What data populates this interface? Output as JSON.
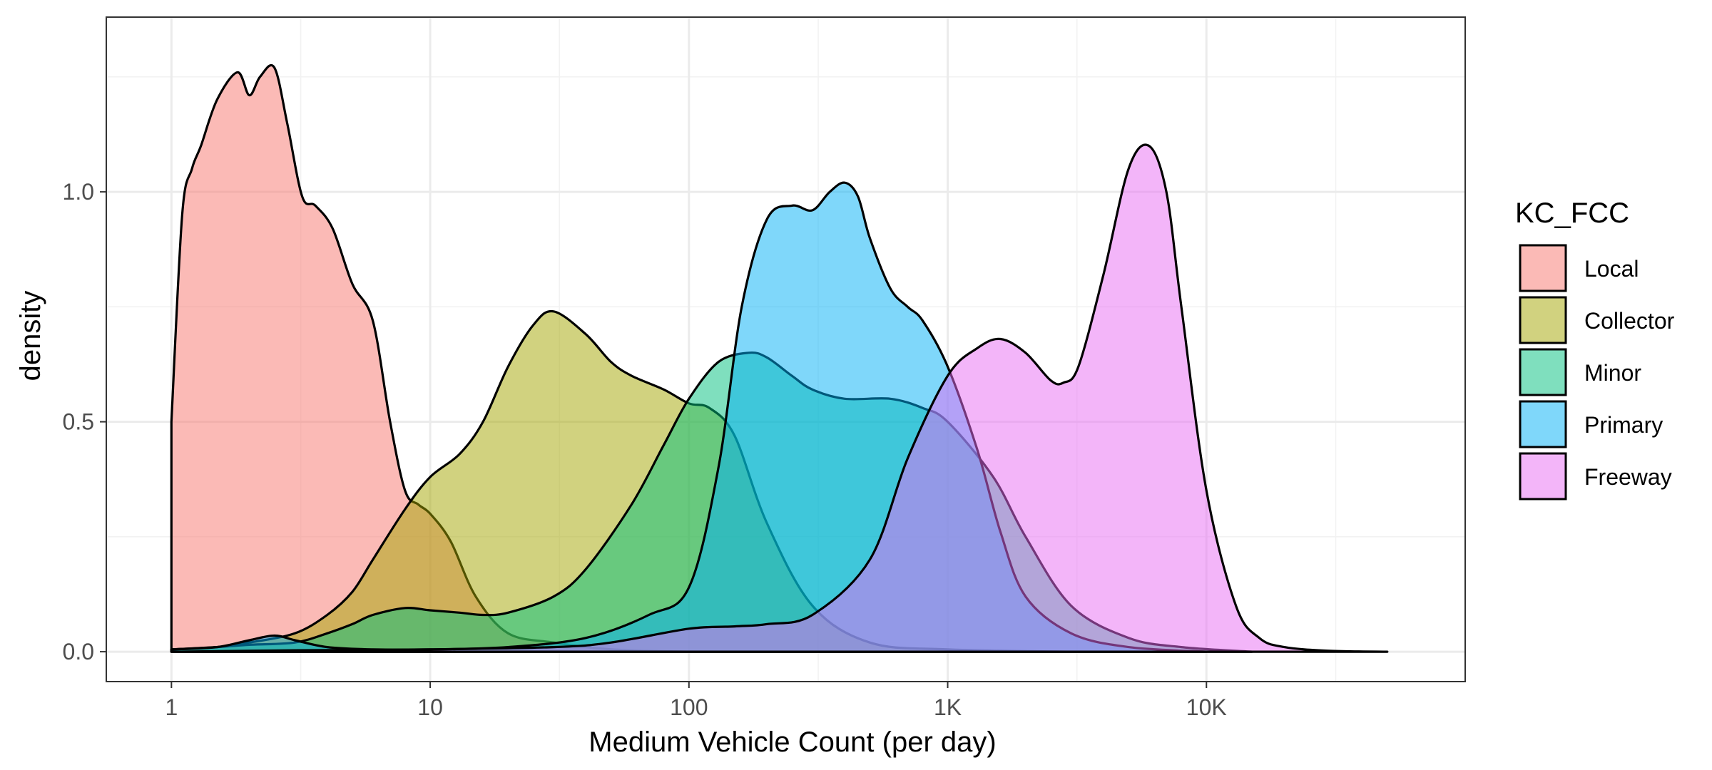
{
  "chart_data": {
    "type": "area",
    "xlabel": "Medium Vehicle Count (per day)",
    "ylabel": "density",
    "x_scale": "log10",
    "xlim": [
      0.56,
      100000
    ],
    "ylim": [
      -0.065,
      1.38
    ],
    "x_ticks": [
      {
        "value": 1,
        "label": "1"
      },
      {
        "value": 10,
        "label": "10"
      },
      {
        "value": 100,
        "label": "100"
      },
      {
        "value": 1000,
        "label": "1K"
      },
      {
        "value": 10000,
        "label": "10K"
      }
    ],
    "x_minor_ticks": [
      3.16,
      31.6,
      316,
      3160,
      31600
    ],
    "y_ticks": [
      {
        "value": 0.0,
        "label": "0.0"
      },
      {
        "value": 0.5,
        "label": "0.5"
      },
      {
        "value": 1.0,
        "label": "1.0"
      }
    ],
    "y_minor_ticks": [
      0.25,
      0.75,
      1.25
    ],
    "grid": true,
    "fill_opacity": 0.5,
    "legend": {
      "title": "KC_FCC",
      "position": "right",
      "entries": [
        "Local",
        "Collector",
        "Minor",
        "Primary",
        "Freeway"
      ]
    },
    "series": [
      {
        "name": "Local",
        "color": "#F8766D",
        "x": [
          1,
          1.1,
          1.2,
          1.3,
          1.5,
          1.8,
          2,
          2.2,
          2.5,
          2.8,
          3.2,
          3.6,
          4.2,
          5,
          6,
          7,
          8,
          9,
          10,
          12,
          15,
          20,
          30,
          50,
          100
        ],
        "y": [
          0.5,
          0.95,
          1.05,
          1.1,
          1.2,
          1.26,
          1.21,
          1.25,
          1.27,
          1.15,
          0.99,
          0.97,
          0.92,
          0.8,
          0.72,
          0.5,
          0.35,
          0.32,
          0.3,
          0.24,
          0.12,
          0.04,
          0.02,
          0.005,
          0.0
        ]
      },
      {
        "name": "Collector",
        "color": "#A3A500",
        "x": [
          1,
          1.5,
          2,
          3,
          4,
          5,
          6,
          8,
          10,
          13,
          16,
          20,
          25,
          30,
          40,
          50,
          60,
          80,
          100,
          120,
          150,
          200,
          300,
          500,
          1000,
          3000
        ],
        "y": [
          0.005,
          0.01,
          0.02,
          0.04,
          0.08,
          0.13,
          0.2,
          0.31,
          0.38,
          0.43,
          0.5,
          0.62,
          0.71,
          0.74,
          0.69,
          0.63,
          0.6,
          0.57,
          0.54,
          0.53,
          0.47,
          0.28,
          0.1,
          0.02,
          0.005,
          0.0
        ]
      },
      {
        "name": "Minor",
        "color": "#00BF7D",
        "x": [
          1,
          1.5,
          2,
          3,
          4,
          5,
          6,
          8,
          10,
          13,
          16,
          20,
          30,
          40,
          60,
          80,
          100,
          130,
          170,
          200,
          250,
          300,
          400,
          600,
          800,
          1000,
          1500,
          2000,
          3000,
          5000,
          8000,
          15000
        ],
        "y": [
          0.005,
          0.01,
          0.015,
          0.02,
          0.04,
          0.06,
          0.08,
          0.095,
          0.09,
          0.085,
          0.08,
          0.085,
          0.12,
          0.18,
          0.32,
          0.45,
          0.55,
          0.63,
          0.65,
          0.64,
          0.6,
          0.57,
          0.55,
          0.55,
          0.53,
          0.5,
          0.38,
          0.25,
          0.1,
          0.03,
          0.01,
          0.0
        ]
      },
      {
        "name": "Primary",
        "color": "#00B0F6",
        "x": [
          1,
          1.5,
          2,
          2.5,
          3,
          4,
          6,
          10,
          20,
          40,
          70,
          100,
          130,
          160,
          200,
          250,
          300,
          350,
          400,
          450,
          500,
          600,
          700,
          800,
          1000,
          1300,
          1600,
          2000,
          3000,
          5000,
          10000
        ],
        "y": [
          0.005,
          0.01,
          0.025,
          0.035,
          0.025,
          0.01,
          0.005,
          0.005,
          0.01,
          0.03,
          0.08,
          0.14,
          0.4,
          0.75,
          0.94,
          0.97,
          0.96,
          1.0,
          1.02,
          0.99,
          0.9,
          0.79,
          0.75,
          0.72,
          0.62,
          0.44,
          0.26,
          0.12,
          0.04,
          0.01,
          0.0
        ]
      },
      {
        "name": "Freeway",
        "color": "#E76BF3",
        "x": [
          1,
          3,
          10,
          30,
          50,
          100,
          150,
          200,
          300,
          500,
          700,
          1000,
          1300,
          1600,
          2000,
          2500,
          2800,
          3200,
          4000,
          5000,
          6000,
          7000,
          8000,
          10000,
          13000,
          16000,
          20000,
          30000,
          50000
        ],
        "y": [
          0.0,
          0.003,
          0.005,
          0.01,
          0.02,
          0.05,
          0.055,
          0.06,
          0.08,
          0.2,
          0.42,
          0.6,
          0.66,
          0.68,
          0.65,
          0.59,
          0.585,
          0.62,
          0.82,
          1.05,
          1.1,
          1.0,
          0.75,
          0.35,
          0.1,
          0.03,
          0.01,
          0.002,
          0.0
        ]
      }
    ]
  }
}
